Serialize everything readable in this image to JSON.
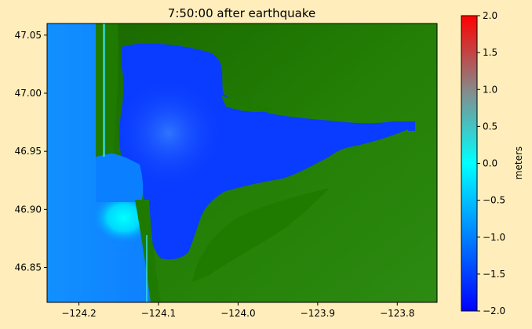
{
  "chart_data": {
    "type": "heatmap",
    "title": "7:50:00 after earthquake",
    "xlabel": "",
    "ylabel": "",
    "xlim": [
      -124.24,
      -123.75
    ],
    "ylim": [
      46.82,
      47.06
    ],
    "x_ticks": [
      {
        "value": -124.2,
        "label": "−124.2"
      },
      {
        "value": -124.1,
        "label": "−124.1"
      },
      {
        "value": -124.0,
        "label": "−124.0"
      },
      {
        "value": -123.9,
        "label": "−123.9"
      },
      {
        "value": -123.8,
        "label": "−123.8"
      }
    ],
    "y_ticks": [
      {
        "value": 46.85,
        "label": "46.85"
      },
      {
        "value": 46.9,
        "label": "46.90"
      },
      {
        "value": 46.95,
        "label": "46.95"
      },
      {
        "value": 47.0,
        "label": "47.00"
      },
      {
        "value": 47.05,
        "label": "47.05"
      }
    ],
    "grid": false,
    "colorbar": {
      "label": "meters",
      "range": [
        -2.0,
        2.0
      ],
      "ticks": [
        {
          "value": 2.0,
          "label": "2.0"
        },
        {
          "value": 1.5,
          "label": "1.5"
        },
        {
          "value": 1.0,
          "label": "1.0"
        },
        {
          "value": 0.5,
          "label": "0.5"
        },
        {
          "value": 0.0,
          "label": "0.0"
        },
        {
          "value": -0.5,
          "label": "−0.5"
        },
        {
          "value": -1.0,
          "label": "−1.0"
        },
        {
          "value": -1.5,
          "label": "−1.5"
        },
        {
          "value": -2.0,
          "label": "−2.0"
        }
      ],
      "colormap": [
        {
          "value": -2.0,
          "color": "#0000ff"
        },
        {
          "value": -1.0,
          "color": "#0080ff"
        },
        {
          "value": 0.0,
          "color": "#00ffff"
        },
        {
          "value": 1.0,
          "color": "#888888"
        },
        {
          "value": 2.0,
          "color": "#ff0000"
        }
      ]
    },
    "land_color": "#1f7a00",
    "water_color": "#0033ff",
    "ocean_color": "#0a7fff"
  }
}
